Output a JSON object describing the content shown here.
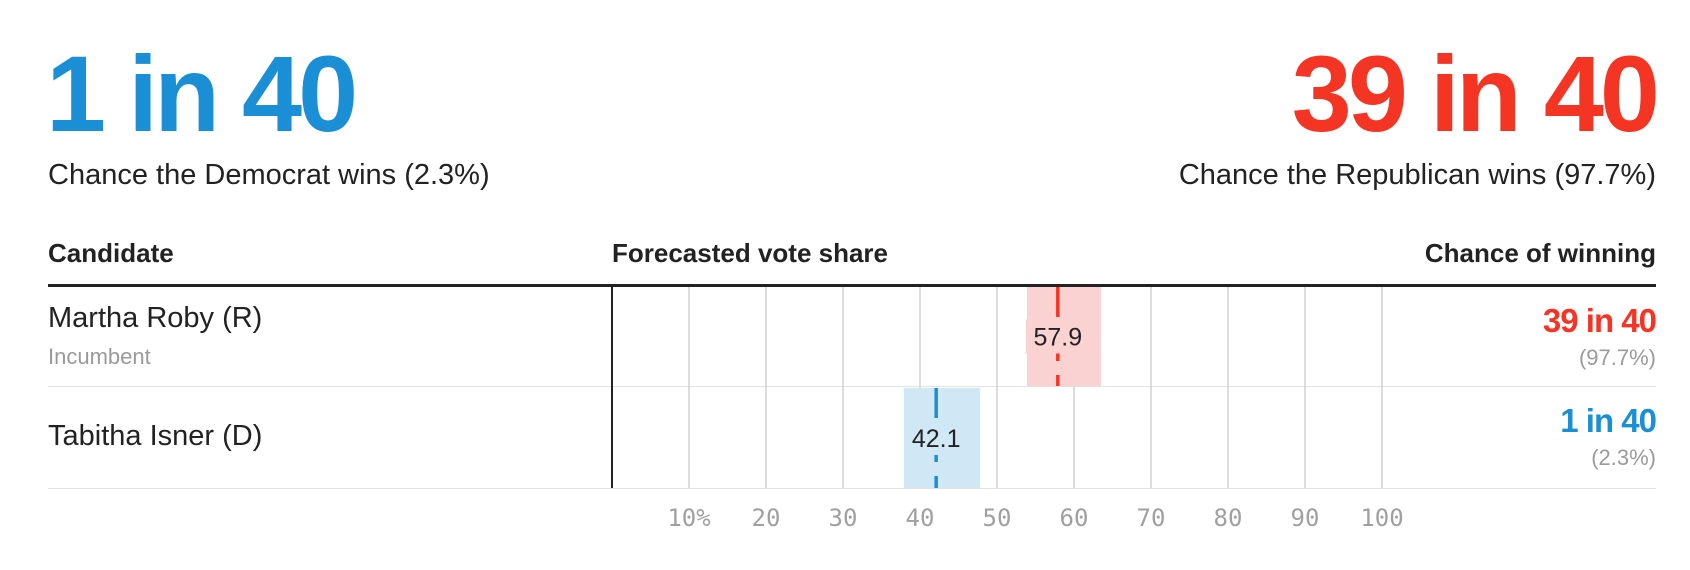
{
  "header": {
    "dem_odds": "1 in 40",
    "dem_caption": "Chance the Democrat wins (2.3%)",
    "rep_odds": "39 in 40",
    "rep_caption": "Chance the Republican wins (97.7%)"
  },
  "table": {
    "col_candidate": "Candidate",
    "col_vote": "Forecasted vote share",
    "col_chance": "Chance of winning"
  },
  "candidates": [
    {
      "name": "Martha Roby (R)",
      "note": "Incumbent",
      "odds": "39 in 40",
      "pct": "(97.7%)"
    },
    {
      "name": "Tabitha Isner (D)",
      "odds": "1 in 40",
      "pct": "(2.3%)"
    }
  ],
  "colors": {
    "rep": "#f53524",
    "rep_band": "#fbd2d2",
    "dem": "#1b8fd6",
    "dem_band": "#d0e7f6",
    "grid": "#d0d0d0"
  },
  "chart_data": {
    "type": "bar",
    "x_ticks": [
      10,
      20,
      30,
      40,
      50,
      60,
      70,
      80,
      90,
      100
    ],
    "x_tick_labels": [
      "10%",
      "20",
      "30",
      "40",
      "50",
      "60",
      "70",
      "80",
      "90",
      "100"
    ],
    "xlim": [
      0,
      100
    ],
    "series": [
      {
        "name": "Martha Roby (R)",
        "value": 57.9,
        "range": [
          53.9,
          63.5
        ],
        "label": "57.9"
      },
      {
        "name": "Tabitha Isner (D)",
        "value": 42.1,
        "range": [
          37.9,
          47.8
        ],
        "label": "42.1"
      }
    ],
    "grid": true
  }
}
